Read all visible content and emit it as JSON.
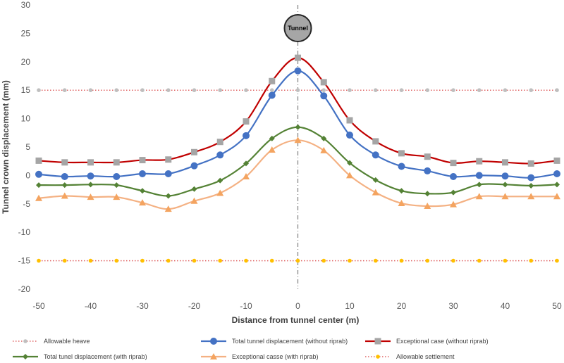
{
  "chart_data": {
    "type": "line",
    "title": "",
    "xlabel": "Distance from tunnel center (m)",
    "ylabel": "Tunnel crown displacement (mm)",
    "xlim": [
      -50,
      50
    ],
    "ylim": [
      -20,
      30
    ],
    "xticks": [
      -50,
      -40,
      -30,
      -20,
      -10,
      0,
      10,
      20,
      30,
      40,
      50
    ],
    "yticks": [
      -20,
      -15,
      -10,
      -5,
      0,
      5,
      10,
      15,
      20,
      25,
      30
    ],
    "grid": false,
    "legend_position": "bottom",
    "annotation": "Tunnel",
    "x": [
      -50,
      -45,
      -40,
      -35,
      -30,
      -25,
      -20,
      -15,
      -10,
      -5,
      0,
      5,
      10,
      15,
      20,
      25,
      30,
      35,
      40,
      45,
      50
    ],
    "series": [
      {
        "name": "Allowable heave",
        "color": "#e06666",
        "marker_color": "#bfbfbf",
        "style": "dotted",
        "marker": "circle-small",
        "values": [
          15,
          15,
          15,
          15,
          15,
          15,
          15,
          15,
          15,
          15,
          15,
          15,
          15,
          15,
          15,
          15,
          15,
          15,
          15,
          15,
          15
        ]
      },
      {
        "name": "Total tunnel displacement (without riprab)",
        "color": "#4472c4",
        "marker_color": "#4472c4",
        "style": "solid",
        "marker": "circle",
        "values": [
          0.2,
          -0.2,
          -0.1,
          -0.2,
          0.3,
          0.3,
          1.7,
          3.6,
          7.0,
          14.1,
          18.4,
          14.0,
          7.1,
          3.6,
          1.6,
          0.8,
          -0.2,
          0.0,
          -0.1,
          -0.4,
          0.3
        ]
      },
      {
        "name": "Exceptional case (without riprab)",
        "color": "#c00000",
        "marker_color": "#a5a5a5",
        "style": "solid",
        "marker": "square",
        "values": [
          2.6,
          2.3,
          2.3,
          2.3,
          2.7,
          2.8,
          4.1,
          5.9,
          9.5,
          16.6,
          20.7,
          16.4,
          9.7,
          6.0,
          3.9,
          3.3,
          2.2,
          2.5,
          2.3,
          2.1,
          2.6
        ]
      },
      {
        "name": "Total tunel displacement (with riprab)",
        "color": "#548235",
        "marker_color": "#548235",
        "style": "solid",
        "marker": "diamond",
        "values": [
          -1.7,
          -1.7,
          -1.6,
          -1.7,
          -2.7,
          -3.6,
          -2.4,
          -0.9,
          2.1,
          6.5,
          8.5,
          6.5,
          2.2,
          -0.8,
          -2.7,
          -3.2,
          -3.0,
          -1.6,
          -1.6,
          -1.8,
          -1.6
        ]
      },
      {
        "name": "Exceptional casse (with riprab)",
        "color": "#f4b183",
        "marker_color": "#f4a460",
        "style": "solid",
        "marker": "triangle",
        "values": [
          -4.0,
          -3.6,
          -3.8,
          -3.8,
          -4.8,
          -5.9,
          -4.5,
          -3.1,
          -0.2,
          4.5,
          6.2,
          4.4,
          0.0,
          -3.0,
          -4.9,
          -5.4,
          -5.1,
          -3.7,
          -3.7,
          -3.7,
          -3.7
        ]
      },
      {
        "name": "Allowable settlement",
        "color": "#e06666",
        "marker_color": "#ffc000",
        "style": "dotted",
        "marker": "circle-small",
        "values": [
          -15,
          -15,
          -15,
          -15,
          -15,
          -15,
          -15,
          -15,
          -15,
          -15,
          -15,
          -15,
          -15,
          -15,
          -15,
          -15,
          -15,
          -15,
          -15,
          -15,
          -15
        ]
      }
    ]
  }
}
